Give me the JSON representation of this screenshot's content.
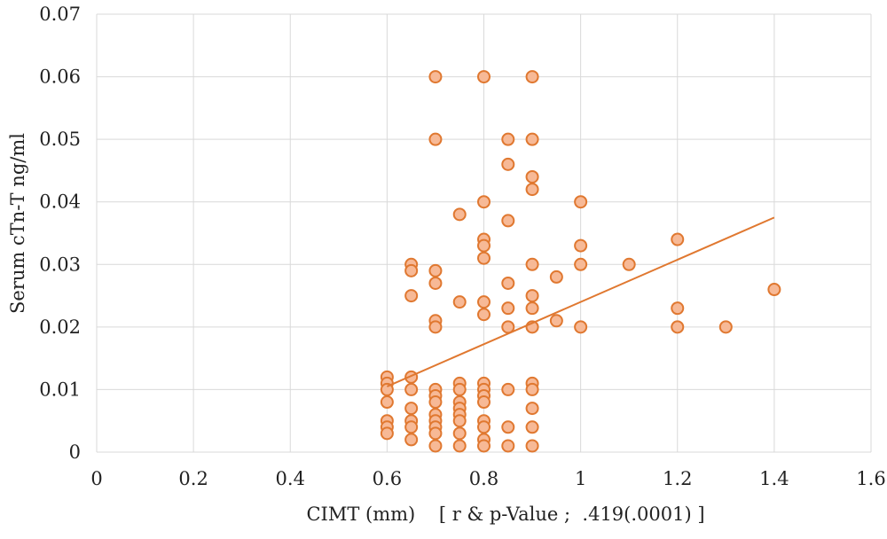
{
  "chart_data": {
    "type": "scatter",
    "xlabel": "CIMT (mm)    [ r & p-Value ;  .419(.0001) ]",
    "ylabel": "Serum cTn-T ng/ml",
    "xlim": [
      0,
      1.6
    ],
    "ylim": [
      0,
      0.07
    ],
    "xticks": [
      "0",
      "0.2",
      "0.4",
      "0.6",
      "0.8",
      "1",
      "1.2",
      "1.4",
      "1.6"
    ],
    "xtick_values": [
      0,
      0.2,
      0.4,
      0.6,
      0.8,
      1.0,
      1.2,
      1.4,
      1.6
    ],
    "yticks": [
      "0",
      "0.01",
      "0.02",
      "0.03",
      "0.04",
      "0.05",
      "0.06",
      "0.07"
    ],
    "ytick_values": [
      0,
      0.01,
      0.02,
      0.03,
      0.04,
      0.05,
      0.06,
      0.07
    ],
    "grid": true,
    "legend": "none",
    "colors": {
      "marker_fill": "#f7b996",
      "marker_edge": "#e07830",
      "trendline": "#e07830",
      "grid": "#d9d9d9",
      "text": "#222222"
    },
    "series": [
      {
        "points": [
          [
            0.6,
            0.012
          ],
          [
            0.6,
            0.011
          ],
          [
            0.6,
            0.01
          ],
          [
            0.6,
            0.008
          ],
          [
            0.6,
            0.005
          ],
          [
            0.6,
            0.004
          ],
          [
            0.6,
            0.003
          ],
          [
            0.65,
            0.03
          ],
          [
            0.65,
            0.029
          ],
          [
            0.65,
            0.025
          ],
          [
            0.65,
            0.012
          ],
          [
            0.65,
            0.01
          ],
          [
            0.65,
            0.007
          ],
          [
            0.65,
            0.005
          ],
          [
            0.65,
            0.004
          ],
          [
            0.65,
            0.002
          ],
          [
            0.7,
            0.06
          ],
          [
            0.7,
            0.05
          ],
          [
            0.7,
            0.029
          ],
          [
            0.7,
            0.027
          ],
          [
            0.7,
            0.021
          ],
          [
            0.7,
            0.02
          ],
          [
            0.7,
            0.01
          ],
          [
            0.7,
            0.009
          ],
          [
            0.7,
            0.008
          ],
          [
            0.7,
            0.006
          ],
          [
            0.7,
            0.005
          ],
          [
            0.7,
            0.004
          ],
          [
            0.7,
            0.003
          ],
          [
            0.7,
            0.001
          ],
          [
            0.75,
            0.038
          ],
          [
            0.75,
            0.024
          ],
          [
            0.75,
            0.011
          ],
          [
            0.75,
            0.01
          ],
          [
            0.75,
            0.008
          ],
          [
            0.75,
            0.007
          ],
          [
            0.75,
            0.006
          ],
          [
            0.75,
            0.005
          ],
          [
            0.75,
            0.003
          ],
          [
            0.75,
            0.001
          ],
          [
            0.8,
            0.06
          ],
          [
            0.8,
            0.04
          ],
          [
            0.8,
            0.034
          ],
          [
            0.8,
            0.033
          ],
          [
            0.8,
            0.031
          ],
          [
            0.8,
            0.024
          ],
          [
            0.8,
            0.022
          ],
          [
            0.8,
            0.011
          ],
          [
            0.8,
            0.01
          ],
          [
            0.8,
            0.009
          ],
          [
            0.8,
            0.008
          ],
          [
            0.8,
            0.005
          ],
          [
            0.8,
            0.004
          ],
          [
            0.8,
            0.002
          ],
          [
            0.8,
            0.001
          ],
          [
            0.85,
            0.05
          ],
          [
            0.85,
            0.046
          ],
          [
            0.85,
            0.037
          ],
          [
            0.85,
            0.027
          ],
          [
            0.85,
            0.023
          ],
          [
            0.85,
            0.02
          ],
          [
            0.85,
            0.01
          ],
          [
            0.85,
            0.004
          ],
          [
            0.85,
            0.001
          ],
          [
            0.9,
            0.06
          ],
          [
            0.9,
            0.05
          ],
          [
            0.9,
            0.044
          ],
          [
            0.9,
            0.042
          ],
          [
            0.9,
            0.03
          ],
          [
            0.9,
            0.025
          ],
          [
            0.9,
            0.023
          ],
          [
            0.9,
            0.02
          ],
          [
            0.9,
            0.011
          ],
          [
            0.9,
            0.01
          ],
          [
            0.9,
            0.007
          ],
          [
            0.9,
            0.004
          ],
          [
            0.9,
            0.001
          ],
          [
            0.95,
            0.028
          ],
          [
            0.95,
            0.021
          ],
          [
            1.0,
            0.04
          ],
          [
            1.0,
            0.033
          ],
          [
            1.0,
            0.03
          ],
          [
            1.0,
            0.02
          ],
          [
            1.1,
            0.03
          ],
          [
            1.2,
            0.034
          ],
          [
            1.2,
            0.023
          ],
          [
            1.2,
            0.02
          ],
          [
            1.3,
            0.02
          ],
          [
            1.4,
            0.026
          ]
        ]
      }
    ],
    "trendline": {
      "x": [
        0.6,
        1.4
      ],
      "y": [
        0.0105,
        0.0375
      ]
    }
  }
}
